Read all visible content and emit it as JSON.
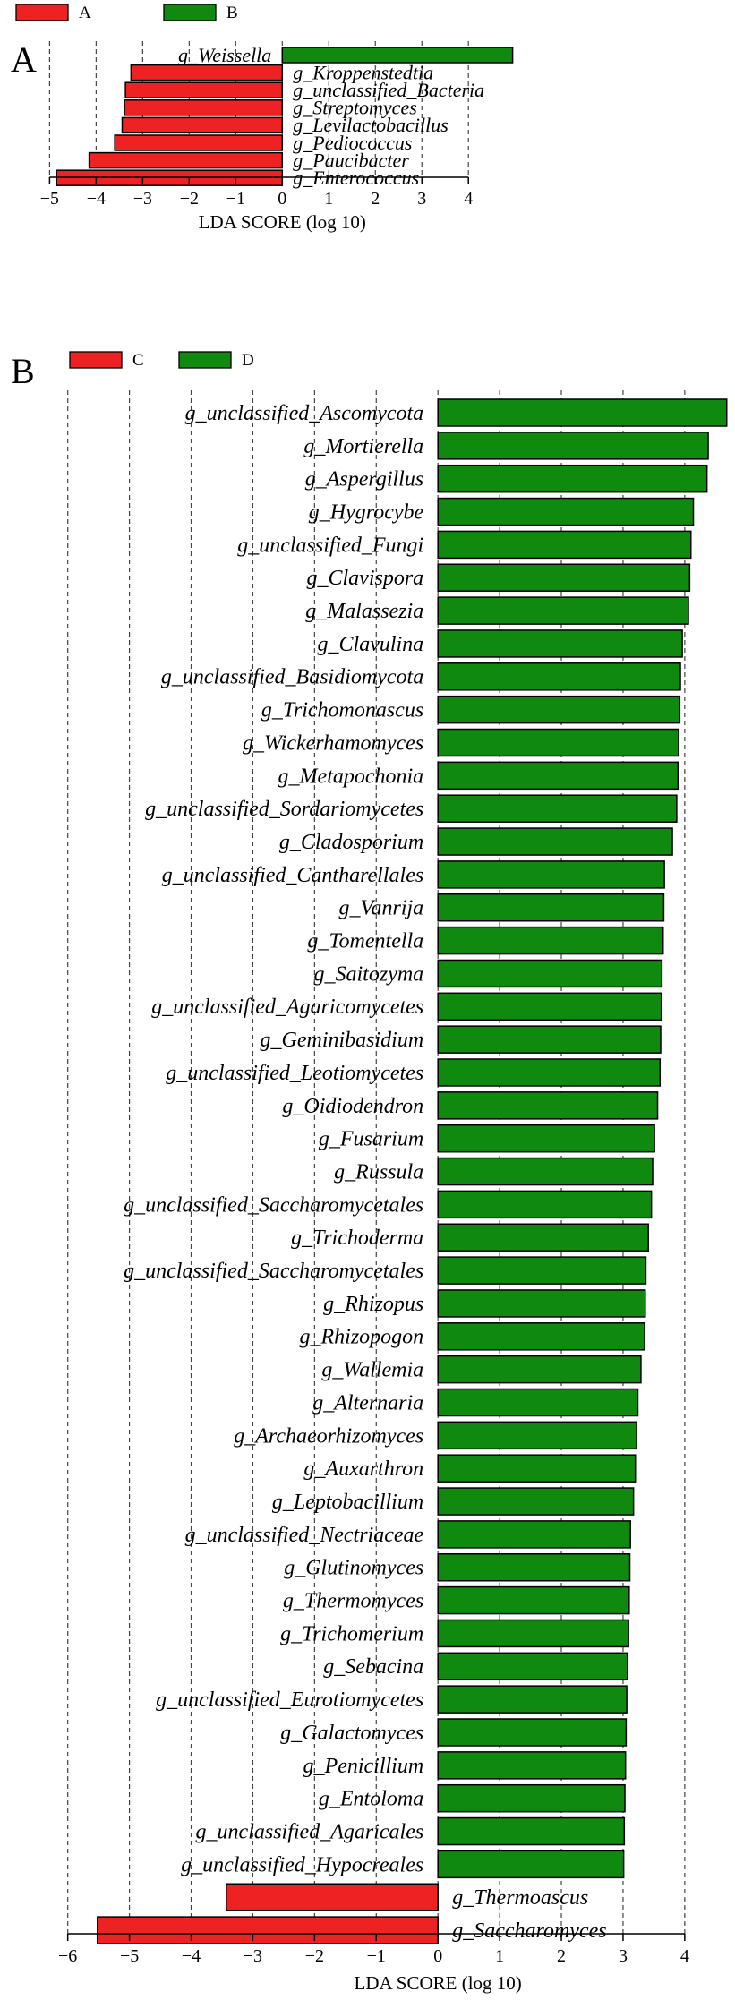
{
  "colors": {
    "red": "#ee2222",
    "green": "#0f8a0f"
  },
  "chart_data": [
    {
      "type": "bar",
      "orientation": "horizontal",
      "panel_label": "A",
      "legend": [
        {
          "name": "A",
          "color": "#ee2222"
        },
        {
          "name": "B",
          "color": "#0f8a0f"
        }
      ],
      "xlabel": "LDA SCORE (log 10)",
      "xlim": [
        -5.2,
        4.9
      ],
      "xticks": [
        -5,
        -4,
        -3,
        -2,
        -1,
        0,
        1,
        2,
        3,
        4
      ],
      "grid": true,
      "bars": [
        {
          "label": "g_Weissella",
          "value": 4.95,
          "group": "B"
        },
        {
          "label": "g_Kroppenstedtia",
          "value": -3.25,
          "group": "A"
        },
        {
          "label": "g_unclassified_Bacteria",
          "value": -3.37,
          "group": "A"
        },
        {
          "label": "g_Streptomyces",
          "value": -3.39,
          "group": "A"
        },
        {
          "label": "g_Levilactobacillus",
          "value": -3.44,
          "group": "A"
        },
        {
          "label": "g_Pediococcus",
          "value": -3.6,
          "group": "A"
        },
        {
          "label": "g_Paucibacter",
          "value": -4.15,
          "group": "A"
        },
        {
          "label": "g_Enterococcus",
          "value": -4.85,
          "group": "A"
        }
      ]
    },
    {
      "type": "bar",
      "orientation": "horizontal",
      "panel_label": "B",
      "legend": [
        {
          "name": "C",
          "color": "#ee2222"
        },
        {
          "name": "D",
          "color": "#0f8a0f"
        }
      ],
      "xlabel": "LDA SCORE (log 10)",
      "xlim": [
        -6.3,
        4.8
      ],
      "xticks": [
        -6,
        -5,
        -4,
        -3,
        -2,
        -1,
        0,
        1,
        2,
        3,
        4
      ],
      "grid": true,
      "bars": [
        {
          "label": "g_unclassified_Ascomycota",
          "value": 4.68,
          "group": "D"
        },
        {
          "label": "g_Mortierella",
          "value": 4.38,
          "group": "D"
        },
        {
          "label": "g_Aspergillus",
          "value": 4.36,
          "group": "D"
        },
        {
          "label": "g_Hygrocybe",
          "value": 4.14,
          "group": "D"
        },
        {
          "label": "g_unclassified_Fungi",
          "value": 4.1,
          "group": "D"
        },
        {
          "label": "g_Clavispora",
          "value": 4.08,
          "group": "D"
        },
        {
          "label": "g_Malassezia",
          "value": 4.06,
          "group": "D"
        },
        {
          "label": "g_Clavulina",
          "value": 3.96,
          "group": "D"
        },
        {
          "label": "g_unclassified_Basidiomycota",
          "value": 3.93,
          "group": "D"
        },
        {
          "label": "g_Trichomonascus",
          "value": 3.92,
          "group": "D"
        },
        {
          "label": "g_Wickerhamomyces",
          "value": 3.9,
          "group": "D"
        },
        {
          "label": "g_Metapochonia",
          "value": 3.89,
          "group": "D"
        },
        {
          "label": "g_unclassified_Sordariomycetes",
          "value": 3.87,
          "group": "D"
        },
        {
          "label": "g_Cladosporium",
          "value": 3.8,
          "group": "D"
        },
        {
          "label": "g_unclassified_Cantharellales",
          "value": 3.67,
          "group": "D"
        },
        {
          "label": "g_Vanrija",
          "value": 3.66,
          "group": "D"
        },
        {
          "label": "g_Tomentella",
          "value": 3.65,
          "group": "D"
        },
        {
          "label": "g_Saitozyma",
          "value": 3.63,
          "group": "D"
        },
        {
          "label": "g_unclassified_Agaricomycetes",
          "value": 3.62,
          "group": "D"
        },
        {
          "label": "g_Geminibasidium",
          "value": 3.61,
          "group": "D"
        },
        {
          "label": "g_unclassified_Leotiomycetes",
          "value": 3.6,
          "group": "D"
        },
        {
          "label": "g_Oidiodendron",
          "value": 3.56,
          "group": "D"
        },
        {
          "label": "g_Fusarium",
          "value": 3.51,
          "group": "D"
        },
        {
          "label": "g_Russula",
          "value": 3.48,
          "group": "D"
        },
        {
          "label": "g_unclassified_Saccharomycetales",
          "value": 3.46,
          "group": "D"
        },
        {
          "label": "g_Trichoderma",
          "value": 3.41,
          "group": "D"
        },
        {
          "label": "g_unclassified_Saccharomycetales",
          "value": 3.37,
          "group": "D"
        },
        {
          "label": "g_Rhizopus",
          "value": 3.36,
          "group": "D"
        },
        {
          "label": "g_Rhizopogon",
          "value": 3.35,
          "group": "D"
        },
        {
          "label": "g_Wallemia",
          "value": 3.29,
          "group": "D"
        },
        {
          "label": "g_Alternaria",
          "value": 3.24,
          "group": "D"
        },
        {
          "label": "g_Archaeorhizomyces",
          "value": 3.22,
          "group": "D"
        },
        {
          "label": "g_Auxarthron",
          "value": 3.2,
          "group": "D"
        },
        {
          "label": "g_Leptobacillium",
          "value": 3.17,
          "group": "D"
        },
        {
          "label": "g_unclassified_Nectriaceae",
          "value": 3.12,
          "group": "D"
        },
        {
          "label": "g_Glutinomyces",
          "value": 3.11,
          "group": "D"
        },
        {
          "label": "g_Thermomyces",
          "value": 3.1,
          "group": "D"
        },
        {
          "label": "g_Trichomerium",
          "value": 3.09,
          "group": "D"
        },
        {
          "label": "g_Sebacina",
          "value": 3.07,
          "group": "D"
        },
        {
          "label": "g_unclassified_Eurotiomycetes",
          "value": 3.06,
          "group": "D"
        },
        {
          "label": "g_Galactomyces",
          "value": 3.05,
          "group": "D"
        },
        {
          "label": "g_Penicillium",
          "value": 3.04,
          "group": "D"
        },
        {
          "label": "g_Entoloma",
          "value": 3.03,
          "group": "D"
        },
        {
          "label": "g_unclassified_Agaricales",
          "value": 3.02,
          "group": "D"
        },
        {
          "label": "g_unclassified_Hypocreales",
          "value": 3.01,
          "group": "D"
        },
        {
          "label": "g_Thermoascus",
          "value": -3.43,
          "group": "C"
        },
        {
          "label": "g_Saccharomyces",
          "value": -5.52,
          "group": "C"
        }
      ]
    }
  ]
}
